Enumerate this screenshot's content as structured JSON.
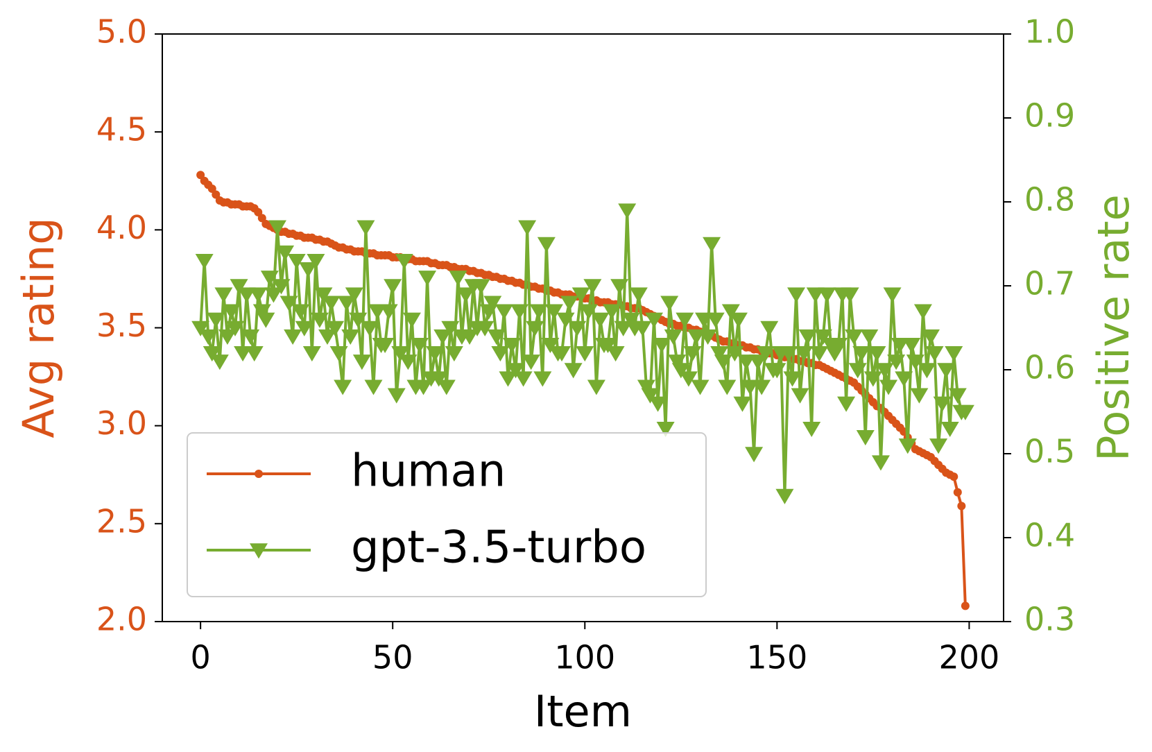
{
  "chart_data": {
    "type": "line",
    "xlabel": "Item",
    "ylabel": "Avg rating",
    "y2label": "Positive rate",
    "xlim": [
      -9.95,
      208.95
    ],
    "xticks": [
      0,
      50,
      100,
      150,
      200
    ],
    "ylim": [
      2,
      5
    ],
    "yticks": [
      {
        "value": 2,
        "label": "2.0"
      },
      2.5,
      {
        "value": 3,
        "label": "3.0"
      },
      3.5,
      {
        "value": 4,
        "label": "4.0"
      },
      4.5,
      {
        "value": 5,
        "label": "5.0"
      }
    ],
    "y2lim": [
      0.3,
      1
    ],
    "y2ticks": [
      0.3,
      0.4,
      0.5,
      0.6,
      0.7,
      0.8,
      0.9,
      {
        "value": 1,
        "label": "1.0"
      }
    ],
    "grid": false,
    "legend": "lower left",
    "x": [
      0,
      1,
      2,
      3,
      4,
      5,
      6,
      7,
      8,
      9,
      10,
      11,
      12,
      13,
      14,
      15,
      16,
      17,
      18,
      19,
      20,
      21,
      22,
      23,
      24,
      25,
      26,
      27,
      28,
      29,
      30,
      31,
      32,
      33,
      34,
      35,
      36,
      37,
      38,
      39,
      40,
      41,
      42,
      43,
      44,
      45,
      46,
      47,
      48,
      49,
      50,
      51,
      52,
      53,
      54,
      55,
      56,
      57,
      58,
      59,
      60,
      61,
      62,
      63,
      64,
      65,
      66,
      67,
      68,
      69,
      70,
      71,
      72,
      73,
      74,
      75,
      76,
      77,
      78,
      79,
      80,
      81,
      82,
      83,
      84,
      85,
      86,
      87,
      88,
      89,
      90,
      91,
      92,
      93,
      94,
      95,
      96,
      97,
      98,
      99,
      100,
      101,
      102,
      103,
      104,
      105,
      106,
      107,
      108,
      109,
      110,
      111,
      112,
      113,
      114,
      115,
      116,
      117,
      118,
      119,
      120,
      121,
      122,
      123,
      124,
      125,
      126,
      127,
      128,
      129,
      130,
      131,
      132,
      133,
      134,
      135,
      136,
      137,
      138,
      139,
      140,
      141,
      142,
      143,
      144,
      145,
      146,
      147,
      148,
      149,
      150,
      151,
      152,
      153,
      154,
      155,
      156,
      157,
      158,
      159,
      160,
      161,
      162,
      163,
      164,
      165,
      166,
      167,
      168,
      169,
      170,
      171,
      172,
      173,
      174,
      175,
      176,
      177,
      178,
      179,
      180,
      181,
      182,
      183,
      184,
      185,
      186,
      187,
      188,
      189,
      190,
      191,
      192,
      193,
      194,
      195,
      196,
      197,
      198,
      199
    ],
    "series": [
      {
        "name": "human",
        "color": "#d95319",
        "marker": "o",
        "axis": "y",
        "values": [
          4.28,
          4.25,
          4.23,
          4.21,
          4.18,
          4.15,
          4.14,
          4.14,
          4.13,
          4.13,
          4.13,
          4.12,
          4.12,
          4.12,
          4.11,
          4.09,
          4.06,
          4.03,
          4.02,
          4.01,
          4.0,
          3.99,
          3.99,
          3.98,
          3.98,
          3.97,
          3.97,
          3.96,
          3.96,
          3.96,
          3.95,
          3.95,
          3.94,
          3.94,
          3.93,
          3.92,
          3.91,
          3.91,
          3.9,
          3.9,
          3.89,
          3.89,
          3.89,
          3.88,
          3.88,
          3.88,
          3.87,
          3.87,
          3.87,
          3.87,
          3.86,
          3.86,
          3.86,
          3.85,
          3.85,
          3.85,
          3.84,
          3.84,
          3.84,
          3.84,
          3.83,
          3.83,
          3.82,
          3.82,
          3.82,
          3.81,
          3.81,
          3.8,
          3.8,
          3.8,
          3.79,
          3.79,
          3.78,
          3.78,
          3.77,
          3.77,
          3.76,
          3.76,
          3.75,
          3.75,
          3.74,
          3.74,
          3.73,
          3.73,
          3.72,
          3.72,
          3.71,
          3.71,
          3.7,
          3.7,
          3.69,
          3.69,
          3.68,
          3.68,
          3.67,
          3.67,
          3.67,
          3.66,
          3.66,
          3.66,
          3.65,
          3.65,
          3.64,
          3.64,
          3.63,
          3.63,
          3.63,
          3.62,
          3.62,
          3.62,
          3.61,
          3.61,
          3.6,
          3.6,
          3.6,
          3.59,
          3.58,
          3.57,
          3.56,
          3.55,
          3.54,
          3.53,
          3.52,
          3.52,
          3.51,
          3.51,
          3.5,
          3.5,
          3.49,
          3.49,
          3.48,
          3.48,
          3.47,
          3.46,
          3.45,
          3.44,
          3.43,
          3.43,
          3.42,
          3.42,
          3.41,
          3.41,
          3.4,
          3.4,
          3.39,
          3.39,
          3.38,
          3.38,
          3.37,
          3.37,
          3.36,
          3.36,
          3.35,
          3.35,
          3.34,
          3.34,
          3.33,
          3.33,
          3.32,
          3.32,
          3.31,
          3.31,
          3.3,
          3.29,
          3.28,
          3.27,
          3.26,
          3.25,
          3.24,
          3.23,
          3.22,
          3.2,
          3.18,
          3.16,
          3.14,
          3.12,
          3.1,
          3.09,
          3.07,
          3.05,
          3.03,
          3.01,
          2.99,
          2.97,
          2.94,
          2.91,
          2.88,
          2.87,
          2.86,
          2.85,
          2.84,
          2.82,
          2.8,
          2.78,
          2.76,
          2.75,
          2.74,
          2.66,
          2.59,
          2.08
        ]
      },
      {
        "name": "gpt-3.5-turbo",
        "color": "#77ac30",
        "marker": "v",
        "axis": "y2",
        "values": [
          0.65,
          0.73,
          0.64,
          0.62,
          0.66,
          0.61,
          0.69,
          0.64,
          0.67,
          0.65,
          0.7,
          0.62,
          0.69,
          0.64,
          0.62,
          0.69,
          0.67,
          0.66,
          0.71,
          0.69,
          0.77,
          0.7,
          0.74,
          0.68,
          0.64,
          0.73,
          0.67,
          0.65,
          0.72,
          0.62,
          0.73,
          0.66,
          0.69,
          0.64,
          0.68,
          0.65,
          0.62,
          0.58,
          0.68,
          0.64,
          0.69,
          0.66,
          0.61,
          0.77,
          0.65,
          0.58,
          0.67,
          0.63,
          0.63,
          0.67,
          0.7,
          0.57,
          0.62,
          0.73,
          0.61,
          0.66,
          0.58,
          0.63,
          0.58,
          0.71,
          0.59,
          0.62,
          0.59,
          0.64,
          0.58,
          0.65,
          0.62,
          0.71,
          0.64,
          0.69,
          0.64,
          0.7,
          0.65,
          0.7,
          0.65,
          0.67,
          0.68,
          0.64,
          0.62,
          0.67,
          0.59,
          0.63,
          0.6,
          0.67,
          0.59,
          0.77,
          0.61,
          0.65,
          0.67,
          0.59,
          0.75,
          0.63,
          0.67,
          0.62,
          0.62,
          0.66,
          0.68,
          0.6,
          0.65,
          0.69,
          0.62,
          0.67,
          0.7,
          0.58,
          0.66,
          0.63,
          0.63,
          0.67,
          0.62,
          0.7,
          0.65,
          0.79,
          0.66,
          0.65,
          0.69,
          0.65,
          0.58,
          0.57,
          0.66,
          0.56,
          0.63,
          0.53,
          0.68,
          0.64,
          0.61,
          0.6,
          0.66,
          0.59,
          0.62,
          0.64,
          0.58,
          0.66,
          0.64,
          0.75,
          0.66,
          0.62,
          0.61,
          0.58,
          0.67,
          0.62,
          0.66,
          0.56,
          0.61,
          0.58,
          0.5,
          0.61,
          0.58,
          0.62,
          0.65,
          0.6,
          0.6,
          0.62,
          0.45,
          0.62,
          0.59,
          0.69,
          0.57,
          0.62,
          0.64,
          0.53,
          0.69,
          0.62,
          0.64,
          0.69,
          0.63,
          0.62,
          0.63,
          0.69,
          0.56,
          0.69,
          0.64,
          0.6,
          0.62,
          0.52,
          0.64,
          0.59,
          0.62,
          0.49,
          0.6,
          0.58,
          0.69,
          0.61,
          0.63,
          0.59,
          0.51,
          0.63,
          0.61,
          0.57,
          0.67,
          0.6,
          0.64,
          0.62,
          0.51,
          0.56,
          0.6,
          0.53,
          0.62,
          0.57,
          0.55,
          0.55
        ]
      }
    ]
  }
}
